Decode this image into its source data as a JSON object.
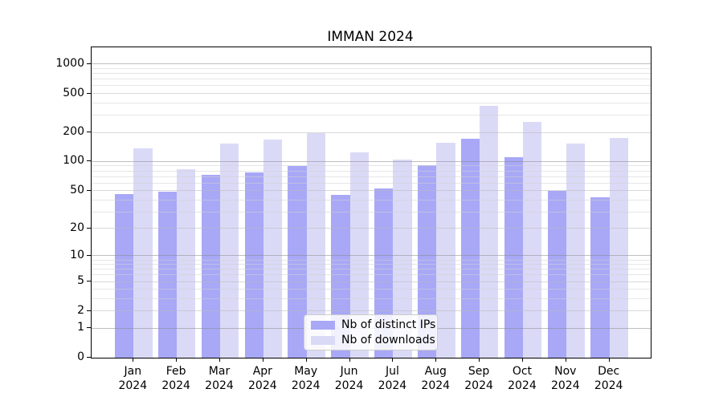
{
  "title": "IMMAN 2024",
  "colors": {
    "distinct_ips_bar": "#a8a8f7",
    "downloads_bar": "#dadaf7",
    "grid_major": "#8c8c8c",
    "grid_labeled_minor": "#bbbbbb",
    "grid_minor": "#d2d2d2",
    "axis": "#000000"
  },
  "legend": {
    "items": [
      {
        "label": "Nb of distinct IPs",
        "color": "#a8a8f7"
      },
      {
        "label": "Nb of downloads",
        "color": "#dadaf7"
      }
    ]
  },
  "chart_data": {
    "type": "bar",
    "title": "IMMAN 2024",
    "categories": [
      "Jan 2024",
      "Feb 2024",
      "Mar 2024",
      "Apr 2024",
      "May 2024",
      "Jun 2024",
      "Jul 2024",
      "Aug 2024",
      "Sep 2024",
      "Oct 2024",
      "Nov 2024",
      "Dec 2024"
    ],
    "series": [
      {
        "name": "Nb of distinct IPs",
        "color": "#a8a8f7",
        "values": [
          46,
          49,
          73,
          78,
          90,
          45,
          53,
          91,
          172,
          110,
          50,
          43
        ]
      },
      {
        "name": "Nb of downloads",
        "color": "#dadaf7",
        "values": [
          138,
          83,
          154,
          170,
          197,
          124,
          104,
          155,
          372,
          255,
          154,
          176
        ]
      }
    ],
    "xlabel": "",
    "ylabel": "",
    "y_scale": "log1p",
    "y_ticks": [
      0,
      1,
      2,
      5,
      10,
      20,
      50,
      100,
      200,
      500,
      1000
    ],
    "y_major_ticks": [
      1,
      10,
      100,
      1000
    ],
    "y_minor_gridlines": [
      3,
      4,
      6,
      7,
      8,
      9,
      30,
      40,
      60,
      70,
      80,
      90,
      300,
      400,
      600,
      700,
      800,
      900
    ],
    "ylim": [
      0,
      1485
    ],
    "grid": true,
    "legend_position": "lower center"
  }
}
